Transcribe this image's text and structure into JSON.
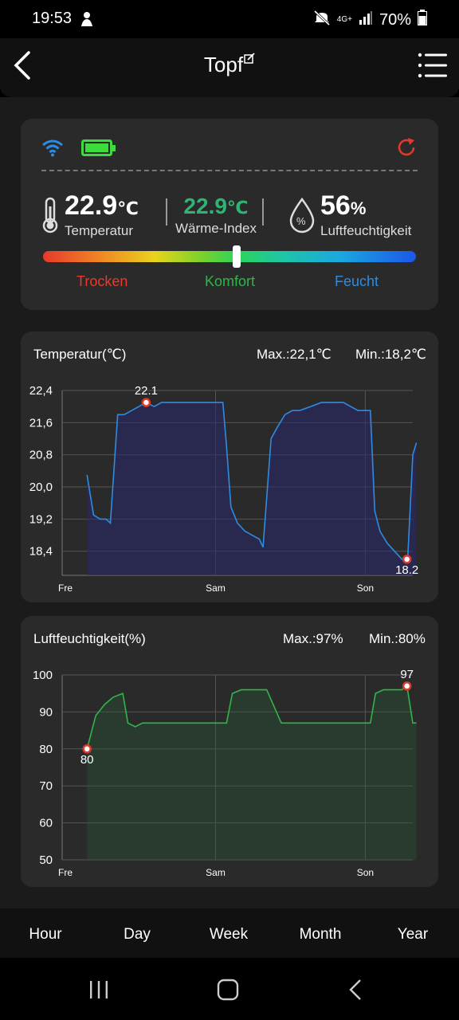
{
  "status_bar": {
    "time": "19:53",
    "battery": "70%",
    "network": "4G+"
  },
  "header": {
    "title": "Topf"
  },
  "summary": {
    "temperature": {
      "value": "22.9",
      "unit": "℃",
      "label": "Temperatur"
    },
    "heat_index": {
      "value": "22.9",
      "unit": "℃",
      "label": "Wärme-Index"
    },
    "humidity": {
      "value": "56",
      "unit": "%",
      "label": "Luftfeuchtigkeit",
      "icon_text": "%"
    },
    "gauge": {
      "position": 0.52
    },
    "zones": {
      "dry": "Trocken",
      "comfort": "Komfort",
      "humid": "Feucht"
    },
    "colors": {
      "wifi": "#2f8be0",
      "battery": "#3ddc3d",
      "refresh": "#e0392b",
      "heat_index": "#2fb573",
      "dry": "#e8392b",
      "comfort": "#2fb54a",
      "humid": "#2f8be0"
    }
  },
  "temp_chart": {
    "title": "Temperatur(℃)",
    "max_label": "Max.:22,1℃",
    "min_label": "Min.:18,2℃",
    "max_value": "22.1",
    "min_value": "18.2"
  },
  "hum_chart": {
    "title": "Luftfeuchtigkeit(%)",
    "max_label": "Max.:97%",
    "min_label": "Min.:80%",
    "max_value": "97",
    "min_value": "80"
  },
  "chart_data": [
    {
      "type": "line",
      "title": "Temperatur(℃)",
      "ylabel": "",
      "xlabel": "",
      "x_ticks": [
        "Fre",
        "Sam",
        "Son"
      ],
      "y_ticks": [
        "22,4",
        "21,6",
        "20,8",
        "20,0",
        "19,2",
        "18,4"
      ],
      "ylim": [
        17.8,
        22.4
      ],
      "xlim": [
        0,
        48
      ],
      "x_tick_positions": [
        0,
        21,
        41.5
      ],
      "color": "#2f8be0",
      "annotations": [
        {
          "text": "22.1",
          "x": 11.5,
          "y": 22.1
        },
        {
          "text": "18.2",
          "x": 47.2,
          "y": 18.2
        }
      ],
      "series": [
        {
          "x": [
            3.4,
            4.3,
            5.2,
            6.0,
            6.6,
            7.6,
            8.5,
            9.5,
            10.5,
            11.5,
            12.6,
            13.6,
            15,
            16,
            17,
            18,
            19,
            20,
            21,
            22,
            22.5,
            23.1,
            24,
            25,
            26,
            27,
            27.5,
            28.6,
            29.5,
            30.5,
            31.5,
            32.5,
            34,
            35.5,
            37,
            38.5,
            39.5,
            40.5,
            41.5,
            42.2,
            42.8,
            43.5,
            44.5,
            45.5,
            46.5,
            47.3,
            48.0,
            48.5
          ],
          "y": [
            20.3,
            19.3,
            19.2,
            19.2,
            19.1,
            21.8,
            21.8,
            21.9,
            22.0,
            22.1,
            22.0,
            22.1,
            22.1,
            22.1,
            22.1,
            22.1,
            22.1,
            22.1,
            22.1,
            22.1,
            21.0,
            19.5,
            19.1,
            18.9,
            18.8,
            18.7,
            18.5,
            21.2,
            21.5,
            21.8,
            21.9,
            21.9,
            22.0,
            22.1,
            22.1,
            22.1,
            22.0,
            21.9,
            21.9,
            21.9,
            19.4,
            18.9,
            18.6,
            18.4,
            18.2,
            18.2,
            20.8,
            21.1
          ]
        }
      ]
    },
    {
      "type": "line",
      "title": "Luftfeuchtigkeit(%)",
      "ylabel": "",
      "xlabel": "",
      "x_ticks": [
        "Fre",
        "Sam",
        "Son"
      ],
      "y_ticks": [
        "100",
        "90",
        "80",
        "70",
        "60",
        "50"
      ],
      "ylim": [
        50,
        100
      ],
      "xlim": [
        0,
        48
      ],
      "x_tick_positions": [
        0,
        21,
        41.5
      ],
      "color": "#2fb54a",
      "annotations": [
        {
          "text": "80",
          "x": 3.4,
          "y": 80
        },
        {
          "text": "97",
          "x": 47.2,
          "y": 97
        }
      ],
      "series": [
        {
          "x": [
            3.4,
            4.6,
            5.8,
            7.0,
            8.3,
            9.0,
            10.0,
            11.0,
            13.0,
            16,
            19,
            22.5,
            23.3,
            24.5,
            26,
            27.5,
            28.0,
            30,
            33,
            37,
            41,
            42.2,
            42.9,
            44,
            45.5,
            46.5,
            47.2,
            48.0,
            48.5
          ],
          "y": [
            80,
            89,
            92,
            94,
            95,
            87,
            86,
            87,
            87,
            87,
            87,
            87,
            95,
            96,
            96,
            96,
            96,
            87,
            87,
            87,
            87,
            87,
            95,
            96,
            96,
            96,
            97,
            87,
            87
          ]
        }
      ]
    }
  ],
  "tabs": [
    "Hour",
    "Day",
    "Week",
    "Month",
    "Year"
  ]
}
